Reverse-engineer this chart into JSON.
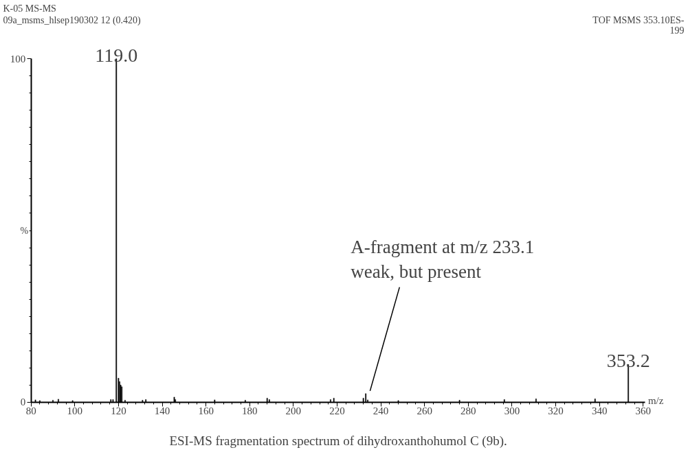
{
  "chart_data": {
    "type": "bar",
    "title": "K-05 MS-MS",
    "subtitle": "09a_msms_hlsep190302 12 (0.420)",
    "xlabel": "m/z",
    "ylabel": "%",
    "x": [
      82,
      84,
      90,
      92.5,
      99,
      116.5,
      117.5,
      119.0,
      120.0,
      120.5,
      121.0,
      121.5,
      123,
      131,
      132.5,
      145.5,
      146,
      164,
      178,
      188,
      189,
      217,
      218.5,
      232,
      233.1,
      234,
      248,
      276,
      296.5,
      311,
      338,
      353.2
    ],
    "values": [
      0.7,
      0.5,
      0.6,
      0.9,
      0.5,
      0.8,
      0.8,
      100,
      7,
      6,
      5,
      4.5,
      0.6,
      0.6,
      0.8,
      1.5,
      0.8,
      0.7,
      0.6,
      1.2,
      0.8,
      0.8,
      1.2,
      1.2,
      2.5,
      0.7,
      0.5,
      0.6,
      0.8,
      1.0,
      1.0,
      11
    ],
    "color": "#000000",
    "xlim": [
      80,
      361
    ],
    "xticks": [
      80,
      100,
      120,
      140,
      160,
      180,
      200,
      220,
      240,
      260,
      280,
      300,
      320,
      340,
      360
    ],
    "ylim": [
      0,
      100
    ],
    "yticks": [
      0,
      100
    ],
    "grid": false,
    "annotations": [
      {
        "text": "A-fragment at m/z 233.1\nweak, but present",
        "x": 233.1,
        "y": 2.5
      },
      {
        "text": "119.0",
        "x": 119.0,
        "y": 100
      },
      {
        "text": "353.2",
        "x": 353.2,
        "y": 11
      },
      "TOF MSMS 353.10ES-",
      "199",
      "ESI-MS fragmentation spectrum of dihydroxanthohumol C (9b)."
    ]
  }
}
